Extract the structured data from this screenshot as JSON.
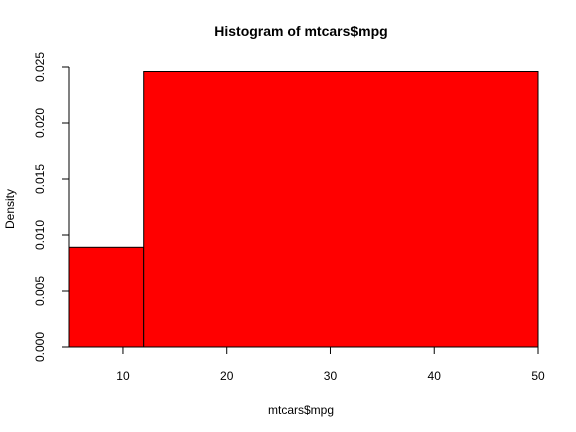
{
  "chart_data": {
    "type": "bar",
    "title": "Histogram of mtcars$mpg",
    "xlabel": "mtcars$mpg",
    "ylabel": "Density",
    "bar_color": "#ff0000",
    "bins": [
      {
        "x0": 4.8,
        "x1": 12.0,
        "value": 0.0089
      },
      {
        "x0": 12.0,
        "x1": 50.0,
        "value": 0.0246
      }
    ],
    "xlim": [
      4.8,
      50
    ],
    "ylim": [
      0,
      0.025
    ],
    "x_ticks": [
      10,
      20,
      30,
      40,
      50
    ],
    "x_tick_labels": [
      "10",
      "20",
      "30",
      "40",
      "50"
    ],
    "y_ticks": [
      0,
      0.005,
      0.01,
      0.015,
      0.02,
      0.025
    ],
    "y_tick_labels": [
      "0.000",
      "0.005",
      "0.010",
      "0.015",
      "0.020",
      "0.025"
    ],
    "grid": false
  }
}
